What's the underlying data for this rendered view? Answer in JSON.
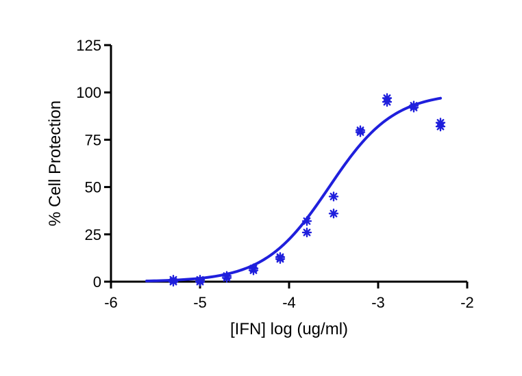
{
  "chart_data": {
    "type": "scatter",
    "title": "",
    "xlabel": "[IFN] log (ug/ml)",
    "ylabel": "% Cell Protection",
    "xlim": [
      -6,
      -2
    ],
    "ylim": [
      0,
      125
    ],
    "xticks": [
      -6,
      -5,
      -4,
      -3,
      -2
    ],
    "yticks": [
      0,
      25,
      50,
      75,
      100,
      125
    ],
    "xtick_labels": [
      "-6",
      "-5",
      "-4",
      "-3",
      "-2"
    ],
    "ytick_labels": [
      "0",
      "25",
      "50",
      "75",
      "100",
      "125"
    ],
    "grid": false,
    "legend": "none",
    "points": {
      "x": [
        -5.3,
        -5.3,
        -5.0,
        -5.0,
        -4.7,
        -4.7,
        -4.4,
        -4.4,
        -4.1,
        -4.1,
        -3.8,
        -3.8,
        -3.5,
        -3.5,
        -3.2,
        -3.2,
        -2.9,
        -2.9,
        -2.6,
        -2.6,
        -2.3,
        -2.3
      ],
      "y": [
        0,
        1,
        0,
        1,
        2,
        3,
        6,
        7,
        12,
        13,
        26,
        32,
        36,
        45,
        79,
        80,
        95,
        97,
        92,
        93,
        82,
        84
      ],
      "marker": "asterisk"
    },
    "fit_curve": {
      "type": "sigmoid",
      "bottom": 0,
      "top": 100,
      "log_ec50": -3.55,
      "hill_slope": 1.2,
      "x_range": [
        -5.6,
        -2.3
      ]
    },
    "colors": {
      "series": "#1f1fdc",
      "axis": "#000000"
    }
  }
}
